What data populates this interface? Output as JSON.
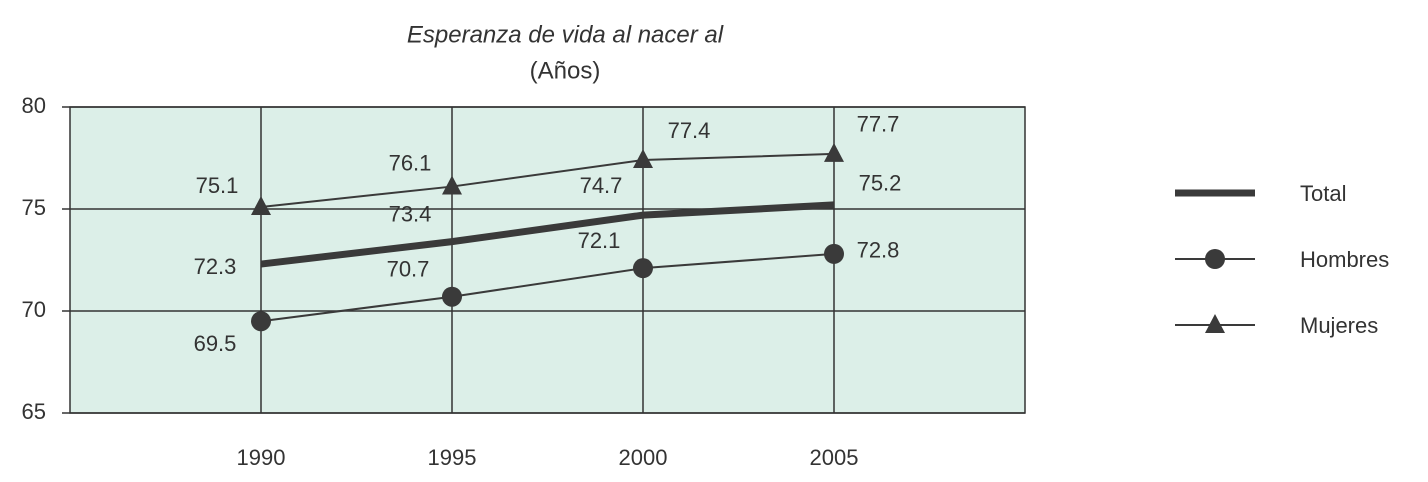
{
  "chart_data": {
    "type": "line",
    "title": "Esperanza de vida al nacer al",
    "subtitle": "(Años)",
    "categories": [
      "1990",
      "1995",
      "2000",
      "2005"
    ],
    "series": [
      {
        "name": "Total",
        "color": "#3a3a3a",
        "values": [
          72.3,
          73.4,
          74.7,
          75.2
        ]
      },
      {
        "name": "Hombres",
        "color": "#3a3a3a",
        "marker": "circle",
        "values": [
          69.5,
          70.7,
          72.1,
          72.8
        ]
      },
      {
        "name": "Mujeres",
        "color": "#3a3a3a",
        "marker": "triangle",
        "values": [
          75.1,
          76.1,
          77.4,
          77.7
        ]
      }
    ],
    "ylim": [
      65,
      80
    ],
    "yticks": [
      65,
      70,
      75,
      80
    ],
    "grid": true,
    "legend": "right",
    "plot_background": "#dcefe8"
  }
}
